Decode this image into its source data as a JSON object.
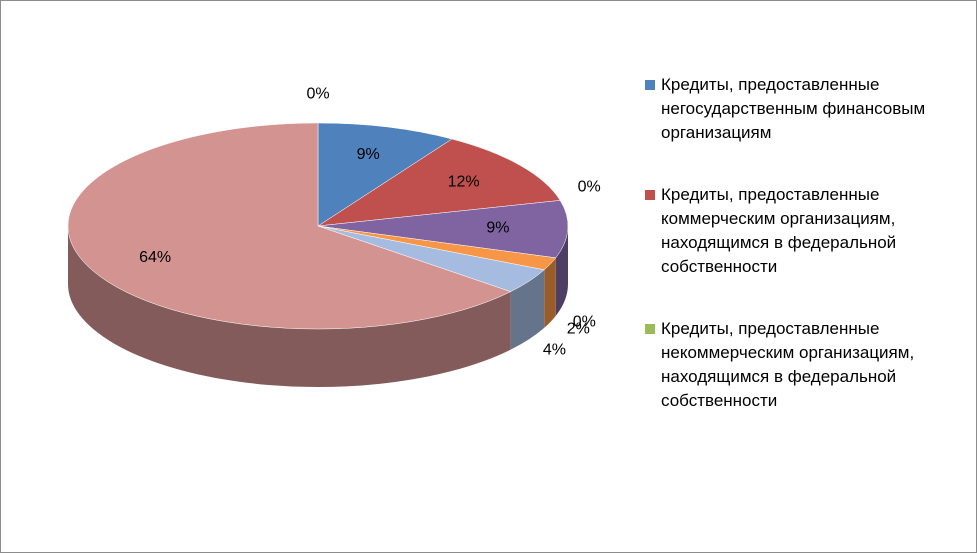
{
  "chart_data": {
    "type": "pie3d",
    "categories": [
      "Кредиты, предоставленные негосударственным финансовым организациям",
      "Кредиты, предоставленные коммерческим организациям, находящимся в федеральной собственности",
      "Кредиты, предоставленные некоммерческим организациям, находящимся в федеральной собственности",
      null,
      null,
      null,
      null,
      null,
      null
    ],
    "values": [
      9,
      12,
      0,
      9,
      0,
      2,
      4,
      64,
      0
    ],
    "value_labels": [
      "9%",
      "12%",
      "0%",
      "9%",
      "0%",
      "2%",
      "4%",
      "64%",
      "0%"
    ],
    "colors": [
      "#4f81bd",
      "#c0504d",
      "#9bbb59",
      "#8064a2",
      "#4bacc6",
      "#f79646",
      "#a5bbe0",
      "#d39391",
      "#2c4d75"
    ],
    "legend": "right"
  }
}
